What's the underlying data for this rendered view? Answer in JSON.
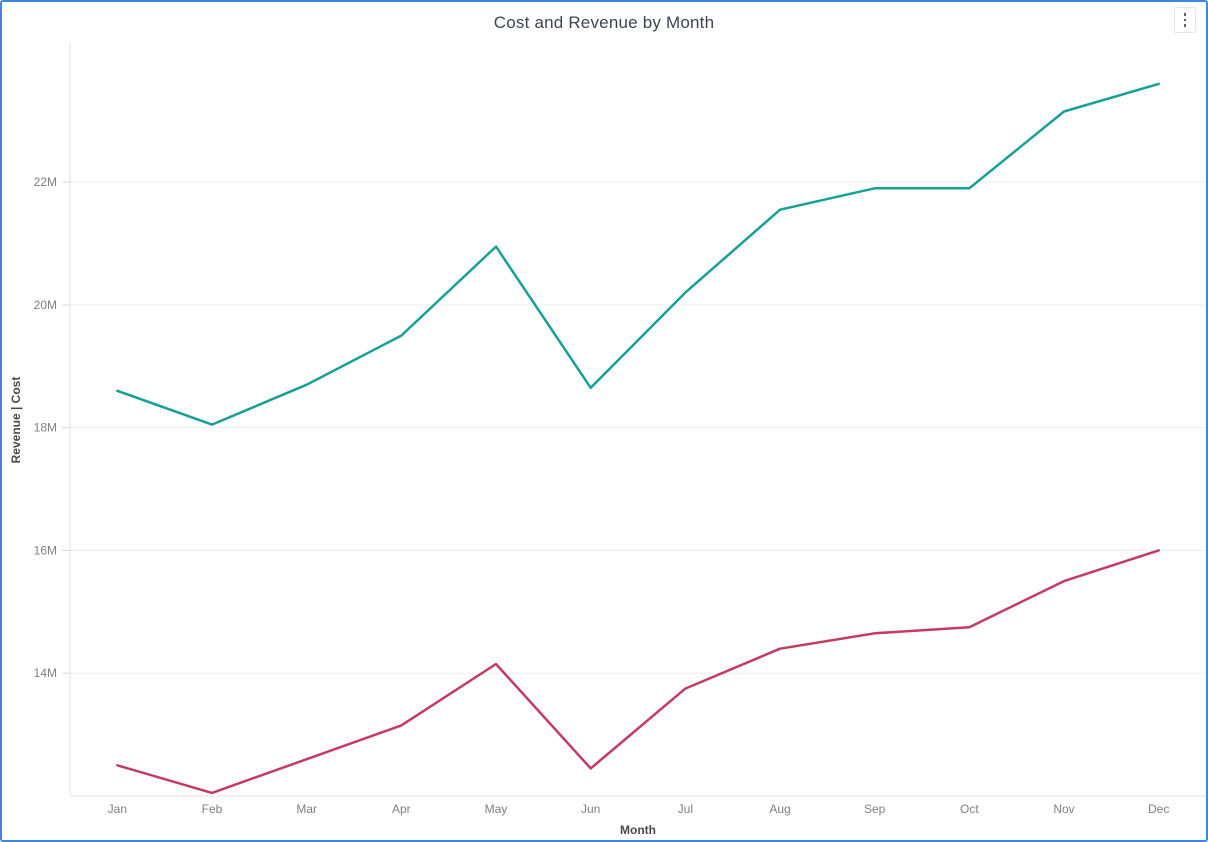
{
  "card": {
    "more_options_icon": "kebab-vertical-dots"
  },
  "chart_data": {
    "type": "line",
    "title": "Cost and Revenue by Month",
    "xlabel": "Month",
    "ylabel": "Revenue  |  Cost",
    "categories": [
      "Jan",
      "Feb",
      "Mar",
      "Apr",
      "May",
      "Jun",
      "Jul",
      "Aug",
      "Sep",
      "Oct",
      "Nov",
      "Dec"
    ],
    "series": [
      {
        "name": "Revenue",
        "color": "#17A096",
        "values": [
          18.6,
          18.05,
          18.7,
          19.5,
          20.95,
          18.65,
          20.2,
          21.55,
          21.9,
          21.9,
          23.15,
          23.6
        ]
      },
      {
        "name": "Cost",
        "color": "#C43A63",
        "values": [
          12.5,
          12.05,
          12.6,
          13.15,
          14.15,
          12.45,
          13.75,
          14.4,
          14.65,
          14.75,
          15.5,
          16.0
        ]
      }
    ],
    "value_unit": "millions",
    "y_ticks": [
      {
        "value": 14,
        "label": "14M"
      },
      {
        "value": 16,
        "label": "16M"
      },
      {
        "value": 18,
        "label": "18M"
      },
      {
        "value": 20,
        "label": "20M"
      },
      {
        "value": 22,
        "label": "22M"
      }
    ],
    "y_axis_range": [
      12.0,
      24.25
    ],
    "grid": true,
    "legend": "none"
  },
  "colors": {
    "card_border": "#3C87E2",
    "gridline": "#EDEDED",
    "axis_line": "#E0E0E0",
    "tick_mark": "#D8D8D8",
    "tick_label": "#808080",
    "series_revenue": "#17A096",
    "series_cost": "#C43A63"
  }
}
